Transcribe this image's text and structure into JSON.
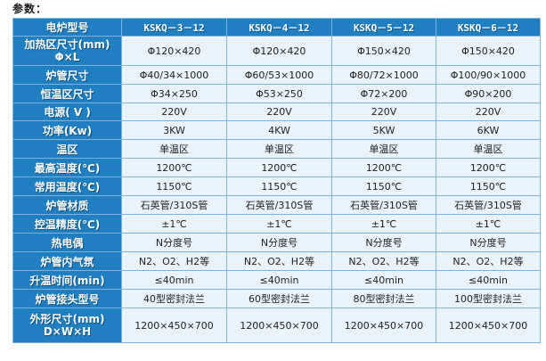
{
  "caption": "参数：",
  "header": {
    "label": "电炉型号",
    "models": [
      "KSKQ－3－12",
      "KSKQ－4－12",
      "KSKQ－5－12",
      "KSKQ－6－12"
    ]
  },
  "rows": [
    {
      "label": "加热区尺寸(mm)",
      "label2": "Φ×L",
      "values": [
        "Φ120×420",
        "Φ120×420",
        "Φ150×420",
        "Φ150×420"
      ]
    },
    {
      "label": "炉管尺寸",
      "values": [
        "Φ40/34×1000",
        "Φ60/53×1000",
        "Φ80/72×1000",
        "Φ100/90×1000"
      ]
    },
    {
      "label": "恒温区尺寸",
      "values": [
        "Φ34×250",
        "Φ53×250",
        "Φ72×200",
        "Φ90×200"
      ]
    },
    {
      "label": "电源( V )",
      "values": [
        "220V",
        "220V",
        "220V",
        "220V"
      ]
    },
    {
      "label": "功率(Kw)",
      "values": [
        "3KW",
        "4KW",
        "5KW",
        "6KW"
      ]
    },
    {
      "label": "温区",
      "values": [
        "单温区",
        "单温区",
        "单温区",
        "单温区"
      ]
    },
    {
      "label": "最高温度(℃)",
      "values": [
        "1200℃",
        "1200℃",
        "1200℃",
        "1200℃"
      ]
    },
    {
      "label": "常用温度(℃)",
      "values": [
        "1150℃",
        "1150℃",
        "1150℃",
        "1150℃"
      ]
    },
    {
      "label": "炉管材质",
      "values": [
        "石英管/310S管",
        "石英管/310S管",
        "石英管/310S管",
        "石英管/310S管"
      ]
    },
    {
      "label": "控温精度(℃)",
      "values": [
        "±1℃",
        "±1℃",
        "±1℃",
        "±1℃"
      ]
    },
    {
      "label": "热电偶",
      "values": [
        "N分度号",
        "N分度号",
        "N分度号",
        "N分度号"
      ]
    },
    {
      "label": "炉管内气氛",
      "values": [
        "N2、O2、H2等",
        "N2、O2、H2等",
        "N2、O2、H2等",
        "N2、O2、H2等"
      ]
    },
    {
      "label": "升温时间(min)",
      "values": [
        "≤40min",
        "≤40min",
        "≤40min",
        "≤40min"
      ]
    },
    {
      "label": "炉管接头型号",
      "values": [
        "40型密封法兰",
        "60型密封法兰",
        "80型密封法兰",
        "100型密封法兰"
      ]
    },
    {
      "label": "外形尺寸(mm)",
      "label2": "D×W×H",
      "values": [
        "1200×450×700",
        "1200×450×700",
        "1200×450×700",
        "1200×450×700"
      ]
    }
  ],
  "colors": {
    "header_bg": "#1f7fc0",
    "cell_bg": "#e9f3fb",
    "border": "#7fb3de"
  }
}
